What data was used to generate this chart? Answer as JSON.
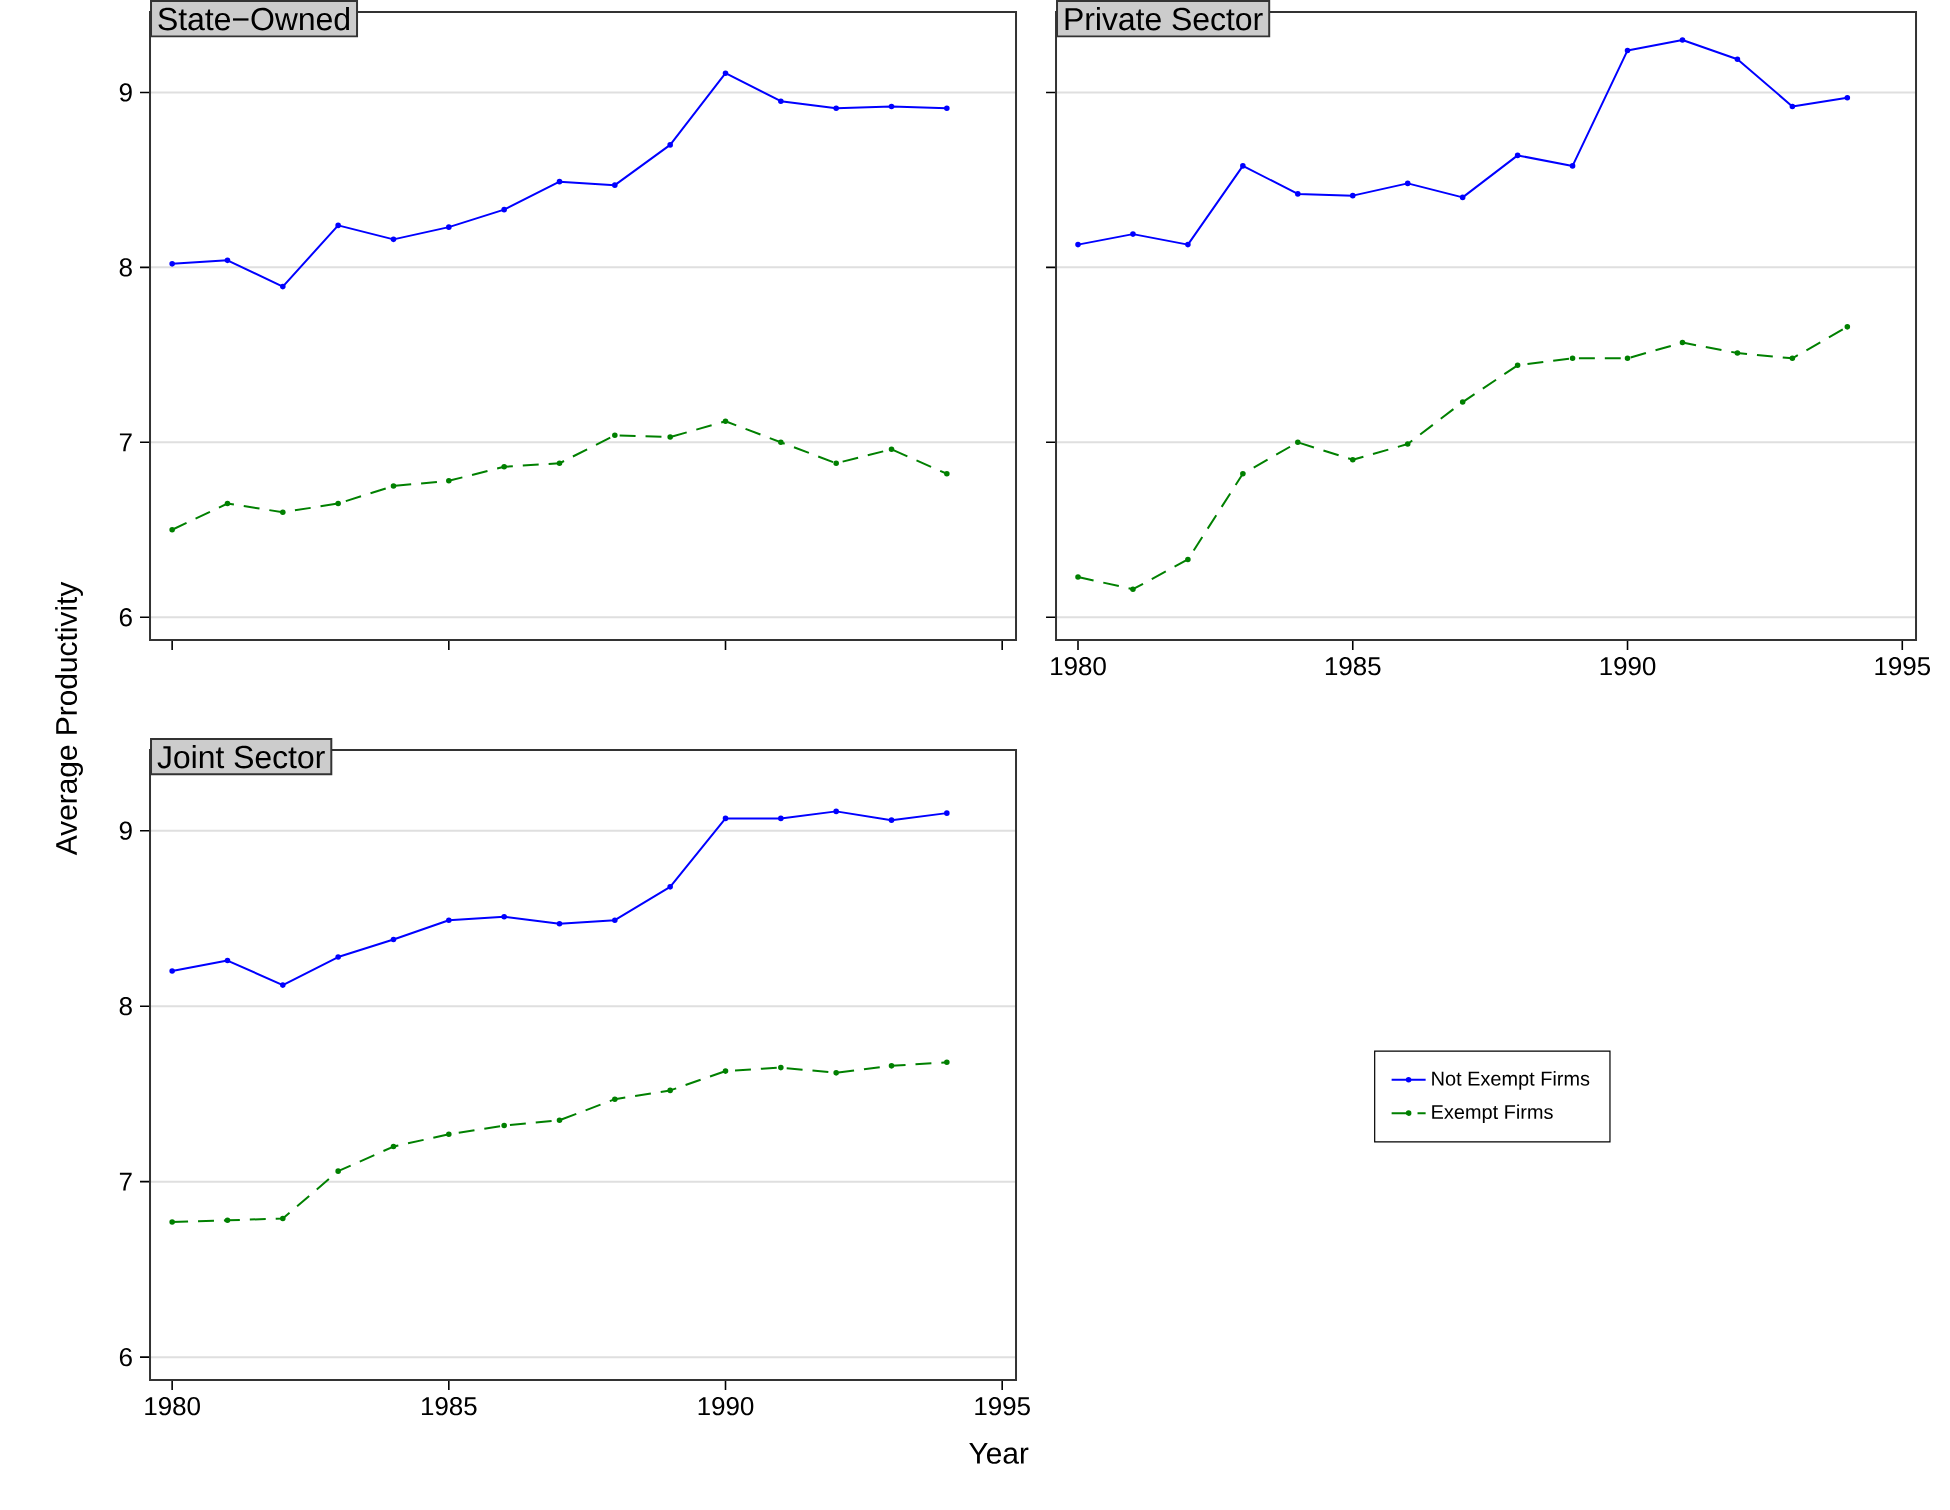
{
  "chart_data": [
    {
      "type": "line",
      "title": "State−Owned",
      "x": [
        1980,
        1981,
        1982,
        1983,
        1984,
        1985,
        1986,
        1987,
        1988,
        1989,
        1990,
        1991,
        1992,
        1993,
        1994
      ],
      "xlim": [
        1979.6,
        1995.25
      ],
      "xticks": [
        1980,
        1985,
        1990,
        1995
      ],
      "ylim": [
        5.87,
        9.46
      ],
      "yticks": [
        6,
        7,
        8,
        9
      ],
      "grid": "y",
      "tick_labels": "y",
      "marker": "circle",
      "series": [
        {
          "color": "#0000ff",
          "line_style": "solid",
          "values": [
            8.02,
            8.04,
            7.89,
            8.24,
            8.16,
            8.23,
            8.33,
            8.49,
            8.47,
            8.7,
            9.11,
            8.95,
            8.91,
            8.92,
            8.91
          ]
        },
        {
          "color": "#008000",
          "line_style": "dashed",
          "values": [
            6.5,
            6.65,
            6.6,
            6.65,
            6.75,
            6.78,
            6.86,
            6.88,
            7.04,
            7.03,
            7.12,
            7.0,
            6.88,
            6.96,
            6.82
          ]
        }
      ]
    },
    {
      "type": "line",
      "title": "Private Sector",
      "x": [
        1980,
        1981,
        1982,
        1983,
        1984,
        1985,
        1986,
        1987,
        1988,
        1989,
        1990,
        1991,
        1992,
        1993,
        1994
      ],
      "xlim": [
        1979.6,
        1995.25
      ],
      "xticks": [
        1980,
        1985,
        1990,
        1995
      ],
      "ylim": [
        5.87,
        9.46
      ],
      "yticks": [
        6,
        7,
        8,
        9
      ],
      "grid": "y",
      "tick_labels": "x",
      "marker": "circle",
      "series": [
        {
          "color": "#0000ff",
          "line_style": "solid",
          "values": [
            8.13,
            8.19,
            8.13,
            8.58,
            8.42,
            8.41,
            8.48,
            8.4,
            8.64,
            8.58,
            9.24,
            9.3,
            9.19,
            8.92,
            8.97
          ]
        },
        {
          "color": "#008000",
          "line_style": "dashed",
          "values": [
            6.23,
            6.16,
            6.33,
            6.82,
            7.0,
            6.9,
            6.99,
            7.23,
            7.44,
            7.48,
            7.48,
            7.57,
            7.51,
            7.48,
            7.66
          ]
        }
      ]
    },
    {
      "type": "line",
      "title": "Joint Sector",
      "xlabel": "Year",
      "ylabel": "Average Productivity",
      "x": [
        1980,
        1981,
        1982,
        1983,
        1984,
        1985,
        1986,
        1987,
        1988,
        1989,
        1990,
        1991,
        1992,
        1993,
        1994
      ],
      "xlim": [
        1979.6,
        1995.25
      ],
      "xticks": [
        1980,
        1985,
        1990,
        1995
      ],
      "ylim": [
        5.87,
        9.46
      ],
      "yticks": [
        6,
        7,
        8,
        9
      ],
      "grid": "y",
      "legend": "right",
      "marker": "circle",
      "series": [
        {
          "name": "Not Exempt Firms",
          "color": "#0000ff",
          "line_style": "solid",
          "values": [
            8.2,
            8.26,
            8.12,
            8.28,
            8.38,
            8.49,
            8.51,
            8.47,
            8.49,
            8.68,
            9.07,
            9.07,
            9.11,
            9.06,
            9.1
          ]
        },
        {
          "name": "Exempt Firms",
          "color": "#008000",
          "line_style": "dashed",
          "values": [
            6.77,
            6.78,
            6.79,
            7.06,
            7.2,
            7.27,
            7.32,
            7.35,
            7.47,
            7.52,
            7.63,
            7.65,
            7.62,
            7.66,
            7.68
          ]
        }
      ]
    }
  ]
}
